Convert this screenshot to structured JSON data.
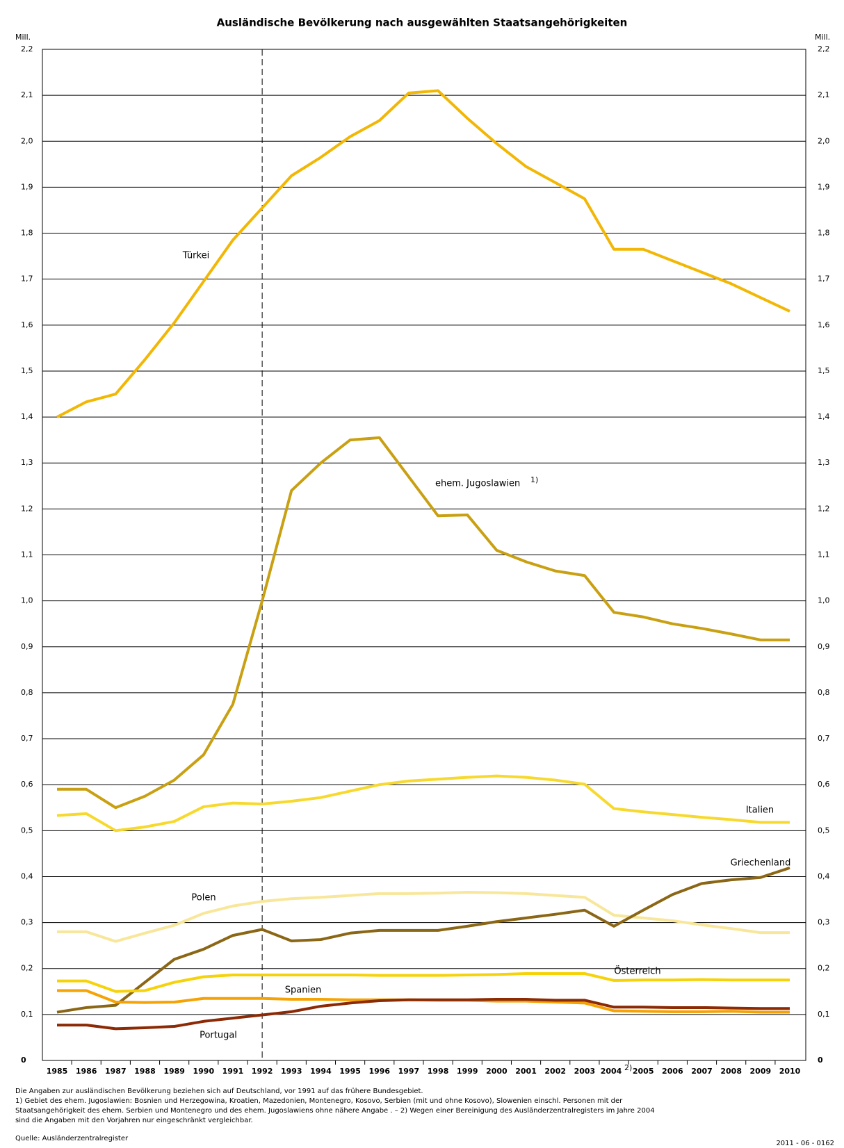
{
  "chart_data": {
    "type": "line",
    "title": "Ausländische Bevölkerung nach ausgewählten Staatsangehörigkeiten",
    "y_unit": "Mill.",
    "categories": [
      "1985",
      "1986",
      "1987",
      "1988",
      "1989",
      "1990",
      "1991",
      "1992",
      "1993",
      "1994",
      "1995",
      "1996",
      "1997",
      "1998",
      "1999",
      "2000",
      "2001",
      "2002",
      "2003",
      "2004",
      "2005",
      "2006",
      "2007",
      "2008",
      "2009",
      "2010"
    ],
    "category_marks": [
      null,
      null,
      null,
      null,
      null,
      null,
      null,
      null,
      null,
      null,
      null,
      null,
      null,
      null,
      null,
      null,
      null,
      null,
      null,
      "2)",
      null,
      null,
      null,
      null,
      null,
      null
    ],
    "ylim": [
      0,
      2.2
    ],
    "yticks": [
      0,
      {
        "value": 0.1,
        "label": "0,1"
      },
      {
        "value": 0.2,
        "label": "0,2"
      },
      {
        "value": 0.3,
        "label": "0,3"
      },
      {
        "value": 0.4,
        "label": "0,4"
      },
      {
        "value": 0.5,
        "label": "0,5"
      },
      {
        "value": 0.6,
        "label": "0,6"
      },
      {
        "value": 0.7,
        "label": "0,7"
      },
      {
        "value": 0.8,
        "label": "0,8"
      },
      {
        "value": 0.9,
        "label": "0,9"
      },
      {
        "value": 1.0,
        "label": "1,0"
      },
      {
        "value": 1.1,
        "label": "1,1"
      },
      {
        "value": 1.2,
        "label": "1,2"
      },
      {
        "value": 1.3,
        "label": "1,3"
      },
      {
        "value": 1.4,
        "label": "1,4"
      },
      {
        "value": 1.5,
        "label": "1,5"
      },
      {
        "value": 1.6,
        "label": "1,6"
      },
      {
        "value": 1.7,
        "label": "1,7"
      },
      {
        "value": 1.8,
        "label": "1,8"
      },
      {
        "value": 1.9,
        "label": "1,9"
      },
      {
        "value": 2.0,
        "label": "2,0"
      },
      {
        "value": 2.1,
        "label": "2,1"
      },
      {
        "value": 2.2,
        "label": "2,2"
      }
    ],
    "grid": true,
    "series": [
      {
        "name": "Türkei",
        "color": "#f2b705",
        "values": [
          1.4,
          1.433,
          1.45,
          1.525,
          1.605,
          1.695,
          1.785,
          1.855,
          1.925,
          1.965,
          2.01,
          2.045,
          2.105,
          2.11,
          2.05,
          1.995,
          1.945,
          1.91,
          1.875,
          1.765,
          1.765,
          1.74,
          1.715,
          1.69,
          1.66,
          1.63
        ]
      },
      {
        "name": "ehem. Jugoslawien",
        "name_mark": "1)",
        "color": "#c9a012",
        "values": [
          0.59,
          0.59,
          0.55,
          0.575,
          0.61,
          0.665,
          0.775,
          1.0,
          1.24,
          1.3,
          1.35,
          1.355,
          1.27,
          1.185,
          1.187,
          1.11,
          1.085,
          1.065,
          1.055,
          0.975,
          0.965,
          0.95,
          0.94,
          0.928,
          0.915,
          0.915
        ]
      },
      {
        "name": "Italien",
        "color": "#f7d92e",
        "values": [
          0.533,
          0.537,
          0.5,
          0.508,
          0.52,
          0.552,
          0.56,
          0.558,
          0.564,
          0.572,
          0.586,
          0.6,
          0.608,
          0.612,
          0.616,
          0.619,
          0.616,
          0.61,
          0.601,
          0.548,
          0.541,
          0.535,
          0.529,
          0.524,
          0.518,
          0.518
        ]
      },
      {
        "name": "Griechenland",
        "color": "#f8e79a",
        "values": [
          0.28,
          0.28,
          0.259,
          0.277,
          0.294,
          0.32,
          0.336,
          0.346,
          0.352,
          0.355,
          0.359,
          0.363,
          0.363,
          0.364,
          0.366,
          0.365,
          0.363,
          0.359,
          0.355,
          0.316,
          0.31,
          0.304,
          0.295,
          0.287,
          0.278,
          0.278
        ]
      },
      {
        "name": "Polen",
        "color": "#8a6615",
        "values": [
          0.105,
          0.115,
          0.12,
          0.17,
          0.22,
          0.242,
          0.272,
          0.285,
          0.26,
          0.263,
          0.277,
          0.283,
          0.283,
          0.283,
          0.292,
          0.302,
          0.31,
          0.318,
          0.327,
          0.292,
          0.327,
          0.361,
          0.385,
          0.393,
          0.398,
          0.419
        ]
      },
      {
        "name": "Österreich",
        "color": "#f6d20a",
        "values": [
          0.173,
          0.173,
          0.15,
          0.152,
          0.17,
          0.182,
          0.186,
          0.186,
          0.186,
          0.186,
          0.186,
          0.185,
          0.185,
          0.185,
          0.186,
          0.187,
          0.189,
          0.189,
          0.189,
          0.174,
          0.175,
          0.175,
          0.176,
          0.175,
          0.175,
          0.175
        ]
      },
      {
        "name": "Spanien",
        "color": "#f5a204",
        "values": [
          0.152,
          0.152,
          0.127,
          0.126,
          0.127,
          0.135,
          0.135,
          0.135,
          0.133,
          0.133,
          0.132,
          0.132,
          0.132,
          0.131,
          0.131,
          0.129,
          0.129,
          0.127,
          0.125,
          0.108,
          0.107,
          0.106,
          0.106,
          0.107,
          0.105,
          0.105
        ]
      },
      {
        "name": "Portugal",
        "color": "#8b2a05",
        "values": [
          0.077,
          0.077,
          0.069,
          0.071,
          0.074,
          0.085,
          0.092,
          0.099,
          0.106,
          0.118,
          0.125,
          0.13,
          0.132,
          0.132,
          0.132,
          0.133,
          0.133,
          0.131,
          0.131,
          0.116,
          0.116,
          0.115,
          0.115,
          0.114,
          0.113,
          0.113
        ]
      }
    ],
    "notes": [
      "Die Angaben zur ausländischen Bevölkerung beziehen sich auf Deutschland, vor 1991 auf das frühere Bundesgebiet.",
      "1) Gebiet des ehem. Jugoslawien: Bosnien und Herzegowina, Kroatien, Mazedonien, Montenegro, Kosovo, Serbien (mit und ohne Kosovo), Slowenien einschl. Personen mit der",
      "Staatsangehörigkeit des ehem. Serbien und Montenegro und des ehem. Jugoslawiens ohne nähere Angabe . – 2) Wegen einer Bereinigung des Ausländerzentralregisters im Jahre 2004",
      "sind die Angaben mit den Vorjahren nur eingeschränkt vergleichbar."
    ],
    "source": "Quelle: Ausländerzentralregister",
    "code": "2011 - 06 - 0162"
  }
}
